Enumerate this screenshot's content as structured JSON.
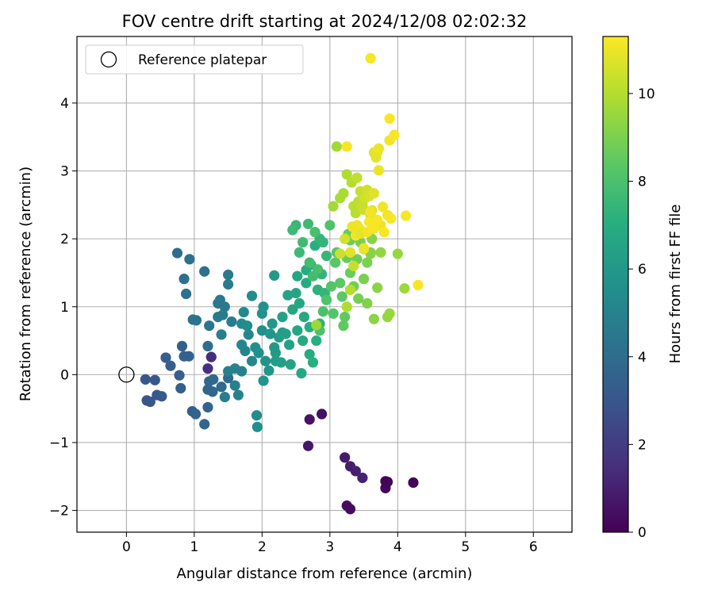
{
  "chart_data": {
    "type": "scatter",
    "title": "FOV centre drift starting at 2024/12/08 02:02:32",
    "xlabel": "Angular distance from reference (arcmin)",
    "ylabel": "Rotation from reference (arcmin)",
    "xlim": [
      -0.73,
      6.57
    ],
    "ylim": [
      -2.32,
      4.98
    ],
    "xticks": [
      0,
      1,
      2,
      3,
      4,
      5,
      6
    ],
    "yticks": [
      -2,
      -1,
      0,
      1,
      2,
      3,
      4
    ],
    "xtick_labels": [
      "0",
      "1",
      "2",
      "3",
      "4",
      "5",
      "6"
    ],
    "ytick_labels": [
      "−2",
      "−1",
      "0",
      "1",
      "2",
      "3",
      "4"
    ],
    "grid": true,
    "legend": {
      "label": "Reference platepar",
      "placement": "upper-left"
    },
    "reference_point": {
      "x": 0,
      "y": 0
    },
    "colorbar": {
      "label": "Hours from first FF file",
      "range": [
        0,
        11.3
      ],
      "colormap": "viridis",
      "ticks": [
        0,
        2,
        4,
        6,
        8,
        10
      ],
      "tick_labels": [
        "0",
        "2",
        "4",
        "6",
        "8",
        "10"
      ]
    },
    "points": [
      [
        3.82,
        -1.57,
        0.1
      ],
      [
        3.85,
        -1.58,
        0.1
      ],
      [
        4.23,
        -1.59,
        0.1
      ],
      [
        3.82,
        -1.67,
        0.15
      ],
      [
        3.3,
        -1.98,
        0.3
      ],
      [
        3.25,
        -1.93,
        0.4
      ],
      [
        2.88,
        -0.58,
        0.5
      ],
      [
        2.7,
        -0.66,
        0.6
      ],
      [
        2.68,
        -1.05,
        0.7
      ],
      [
        3.22,
        -1.22,
        0.8
      ],
      [
        3.3,
        -1.35,
        0.9
      ],
      [
        3.38,
        -1.42,
        1.0
      ],
      [
        3.48,
        -1.52,
        1.1
      ],
      [
        1.25,
        0.26,
        1.4
      ],
      [
        1.2,
        0.09,
        1.6
      ],
      [
        0.3,
        -0.38,
        3.0
      ],
      [
        0.35,
        -0.4,
        3.0
      ],
      [
        0.45,
        -0.3,
        3.0
      ],
      [
        0.28,
        -0.07,
        3.1
      ],
      [
        0.42,
        -0.08,
        3.1
      ],
      [
        0.52,
        -0.32,
        3.2
      ],
      [
        0.65,
        0.13,
        3.3
      ],
      [
        0.58,
        0.25,
        3.3
      ],
      [
        0.78,
        -0.01,
        3.4
      ],
      [
        0.8,
        -0.2,
        3.4
      ],
      [
        0.82,
        0.42,
        3.5
      ],
      [
        0.85,
        0.27,
        3.5
      ],
      [
        0.92,
        0.27,
        3.5
      ],
      [
        0.97,
        -0.54,
        3.5
      ],
      [
        1.02,
        -0.58,
        3.6
      ],
      [
        1.15,
        -0.73,
        3.6
      ],
      [
        1.2,
        -0.48,
        3.6
      ],
      [
        1.2,
        -0.22,
        3.7
      ],
      [
        1.27,
        -0.25,
        3.7
      ],
      [
        1.22,
        -0.1,
        3.8
      ],
      [
        1.28,
        -0.07,
        3.8
      ],
      [
        1.4,
        -0.18,
        3.9
      ],
      [
        1.5,
        -0.05,
        3.9
      ],
      [
        1.2,
        0.42,
        4.0
      ],
      [
        0.75,
        1.79,
        4.0
      ],
      [
        0.85,
        1.41,
        4.1
      ],
      [
        0.88,
        1.19,
        4.1
      ],
      [
        0.93,
        1.7,
        4.2
      ],
      [
        1.15,
        1.52,
        4.2
      ],
      [
        0.98,
        0.81,
        4.3
      ],
      [
        1.03,
        0.8,
        4.3
      ],
      [
        1.22,
        0.72,
        4.4
      ],
      [
        1.35,
        1.05,
        4.4
      ],
      [
        1.38,
        1.1,
        4.5
      ],
      [
        1.45,
        1.0,
        4.5
      ],
      [
        1.35,
        0.85,
        4.6
      ],
      [
        1.42,
        0.88,
        4.6
      ],
      [
        1.5,
        1.47,
        4.6
      ],
      [
        1.5,
        1.33,
        4.7
      ],
      [
        1.55,
        0.78,
        4.7
      ],
      [
        1.4,
        0.59,
        4.8
      ],
      [
        1.45,
        -0.33,
        4.8
      ],
      [
        1.5,
        0.05,
        4.9
      ],
      [
        1.6,
        -0.16,
        4.9
      ],
      [
        1.6,
        0.09,
        5.0
      ],
      [
        1.65,
        -0.3,
        5.0
      ],
      [
        1.7,
        0.05,
        5.0
      ],
      [
        1.7,
        0.44,
        5.1
      ],
      [
        1.75,
        0.35,
        5.1
      ],
      [
        1.8,
        0.59,
        5.2
      ],
      [
        1.85,
        0.2,
        5.2
      ],
      [
        1.7,
        0.75,
        5.3
      ],
      [
        1.73,
        0.92,
        5.3
      ],
      [
        1.78,
        0.72,
        5.4
      ],
      [
        1.85,
        1.16,
        5.4
      ],
      [
        1.9,
        0.4,
        5.5
      ],
      [
        1.92,
        -0.6,
        5.5
      ],
      [
        1.93,
        -0.77,
        5.6
      ],
      [
        1.95,
        0.32,
        5.6
      ],
      [
        2.0,
        0.65,
        5.6
      ],
      [
        2.0,
        0.9,
        5.7
      ],
      [
        2.02,
        1.0,
        5.7
      ],
      [
        2.02,
        -0.09,
        5.8
      ],
      [
        2.05,
        0.2,
        5.8
      ],
      [
        2.1,
        0.06,
        5.9
      ],
      [
        2.12,
        0.6,
        5.9
      ],
      [
        2.15,
        0.75,
        6.0
      ],
      [
        2.18,
        0.4,
        6.0
      ],
      [
        2.18,
        1.46,
        6.1
      ],
      [
        2.2,
        0.32,
        6.1
      ],
      [
        2.2,
        0.2,
        6.2
      ],
      [
        2.25,
        0.55,
        6.2
      ],
      [
        2.28,
        0.18,
        6.3
      ],
      [
        2.3,
        0.62,
        6.3
      ],
      [
        2.3,
        0.85,
        6.4
      ],
      [
        2.35,
        0.6,
        6.4
      ],
      [
        2.38,
        1.17,
        6.5
      ],
      [
        2.4,
        0.44,
        6.5
      ],
      [
        2.42,
        0.15,
        6.5
      ],
      [
        2.45,
        0.96,
        6.6
      ],
      [
        2.5,
        1.2,
        6.6
      ],
      [
        2.52,
        0.65,
        6.6
      ],
      [
        2.52,
        1.45,
        6.7
      ],
      [
        2.55,
        1.05,
        6.7
      ],
      [
        2.58,
        0.02,
        6.7
      ],
      [
        2.6,
        0.5,
        6.8
      ],
      [
        2.62,
        0.85,
        6.8
      ],
      [
        2.65,
        1.35,
        6.9
      ],
      [
        2.65,
        1.54,
        6.9
      ],
      [
        2.7,
        0.3,
        6.9
      ],
      [
        2.7,
        0.7,
        7.0
      ],
      [
        2.72,
        1.62,
        7.0
      ],
      [
        2.75,
        0.18,
        7.1
      ],
      [
        2.78,
        1.9,
        7.1
      ],
      [
        2.8,
        0.5,
        7.1
      ],
      [
        2.82,
        1.25,
        7.2
      ],
      [
        2.85,
        0.75,
        7.2
      ],
      [
        2.85,
        2.0,
        7.3
      ],
      [
        2.88,
        1.48,
        7.3
      ],
      [
        2.9,
        1.95,
        7.4
      ],
      [
        2.92,
        1.2,
        7.4
      ],
      [
        2.95,
        1.75,
        7.5
      ],
      [
        2.5,
        2.2,
        7.5
      ],
      [
        2.45,
        2.13,
        7.6
      ],
      [
        2.55,
        1.8,
        7.6
      ],
      [
        2.6,
        1.95,
        7.7
      ],
      [
        2.68,
        2.22,
        7.7
      ],
      [
        2.7,
        1.65,
        7.8
      ],
      [
        2.75,
        1.45,
        7.8
      ],
      [
        2.78,
        2.1,
        7.9
      ],
      [
        2.82,
        1.55,
        7.9
      ],
      [
        2.85,
        0.65,
        8.0
      ],
      [
        2.9,
        0.93,
        8.0
      ],
      [
        2.95,
        1.1,
        8.1
      ],
      [
        3.0,
        2.2,
        8.1
      ],
      [
        3.02,
        1.3,
        8.2
      ],
      [
        3.05,
        0.9,
        8.2
      ],
      [
        3.08,
        1.65,
        8.3
      ],
      [
        3.1,
        1.8,
        8.3
      ],
      [
        3.15,
        1.35,
        8.4
      ],
      [
        3.18,
        1.15,
        8.4
      ],
      [
        3.2,
        0.72,
        8.5
      ],
      [
        3.22,
        0.85,
        8.5
      ],
      [
        3.25,
        1.72,
        8.6
      ],
      [
        3.27,
        2.07,
        8.6
      ],
      [
        3.3,
        1.98,
        8.7
      ],
      [
        3.3,
        1.5,
        8.7
      ],
      [
        3.35,
        1.3,
        8.8
      ],
      [
        3.4,
        1.7,
        8.8
      ],
      [
        3.42,
        1.12,
        8.9
      ],
      [
        3.45,
        1.95,
        8.9
      ],
      [
        3.5,
        1.41,
        9.0
      ],
      [
        3.55,
        1.65,
        9.0
      ],
      [
        3.55,
        1.05,
        9.1
      ],
      [
        3.6,
        1.78,
        9.1
      ],
      [
        3.6,
        1.8,
        9.2
      ],
      [
        3.62,
        2.0,
        9.2
      ],
      [
        3.65,
        0.82,
        9.3
      ],
      [
        3.7,
        1.28,
        9.3
      ],
      [
        3.75,
        1.8,
        9.4
      ],
      [
        3.85,
        0.85,
        9.4
      ],
      [
        3.88,
        0.9,
        9.5
      ],
      [
        4.0,
        1.78,
        9.5
      ],
      [
        4.1,
        1.27,
        9.6
      ],
      [
        2.8,
        0.73,
        9.6
      ],
      [
        3.05,
        2.48,
        9.7
      ],
      [
        3.1,
        3.36,
        9.7
      ],
      [
        3.15,
        2.6,
        9.8
      ],
      [
        3.2,
        2.67,
        9.8
      ],
      [
        3.25,
        2.95,
        9.9
      ],
      [
        3.25,
        1.0,
        9.9
      ],
      [
        3.3,
        1.25,
        10.0
      ],
      [
        3.32,
        2.83,
        10.0
      ],
      [
        3.35,
        2.48,
        10.1
      ],
      [
        3.38,
        2.38,
        10.1
      ],
      [
        3.4,
        2.9,
        10.2
      ],
      [
        3.42,
        2.55,
        10.2
      ],
      [
        3.45,
        2.7,
        10.3
      ],
      [
        3.48,
        2.5,
        10.3
      ],
      [
        3.5,
        1.85,
        10.4
      ],
      [
        3.5,
        2.43,
        10.4
      ],
      [
        3.52,
        2.6,
        10.5
      ],
      [
        3.55,
        2.72,
        10.5
      ],
      [
        3.58,
        2.63,
        10.6
      ],
      [
        3.6,
        2.35,
        10.6
      ],
      [
        3.62,
        2.25,
        10.7
      ],
      [
        3.62,
        2.42,
        10.7
      ],
      [
        3.65,
        3.27,
        10.8
      ],
      [
        3.65,
        2.67,
        10.8
      ],
      [
        3.68,
        3.2,
        10.9
      ],
      [
        3.7,
        3.28,
        10.9
      ],
      [
        3.72,
        3.01,
        11.0
      ],
      [
        3.72,
        3.33,
        11.0
      ],
      [
        3.75,
        2.2,
        11.0
      ],
      [
        3.78,
        2.47,
        11.1
      ],
      [
        3.85,
        2.35,
        11.1
      ],
      [
        3.88,
        3.45,
        11.1
      ],
      [
        3.88,
        3.77,
        11.2
      ],
      [
        3.9,
        2.3,
        11.2
      ],
      [
        3.95,
        3.53,
        11.2
      ],
      [
        4.12,
        2.34,
        11.2
      ],
      [
        4.3,
        1.32,
        11.2
      ],
      [
        3.6,
        4.66,
        11.2
      ],
      [
        3.25,
        3.36,
        11.2
      ],
      [
        3.4,
        2.2,
        11.0
      ],
      [
        3.38,
        2.05,
        11.1
      ],
      [
        3.42,
        2.12,
        11.0
      ],
      [
        3.44,
        2.15,
        11.1
      ],
      [
        3.33,
        2.18,
        11.0
      ],
      [
        3.46,
        2.08,
        10.9
      ],
      [
        3.3,
        1.8,
        10.8
      ],
      [
        3.5,
        1.86,
        11.0
      ],
      [
        3.55,
        2.1,
        11.1
      ],
      [
        3.58,
        2.25,
        11.2
      ],
      [
        3.65,
        2.15,
        11.2
      ],
      [
        3.7,
        2.28,
        11.2
      ],
      [
        3.8,
        2.1,
        11.2
      ],
      [
        3.6,
        2.4,
        11.1
      ],
      [
        3.22,
        2.0,
        10.5
      ],
      [
        3.15,
        1.78,
        10.4
      ],
      [
        3.35,
        1.6,
        10.3
      ]
    ]
  }
}
